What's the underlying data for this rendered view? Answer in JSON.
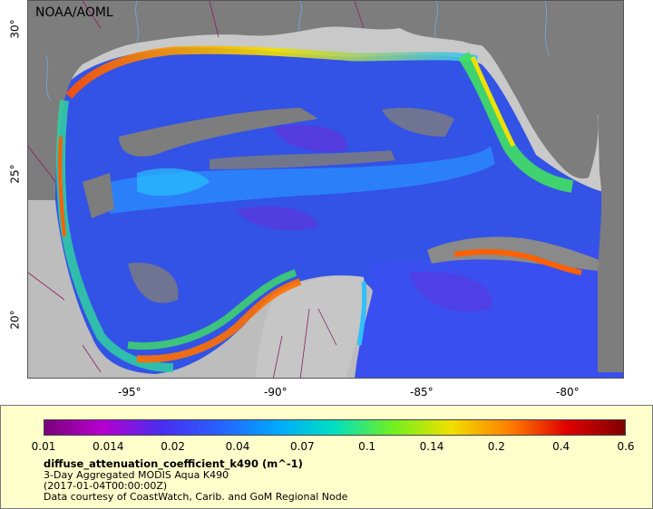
{
  "map": {
    "label": "NOAA/AOML",
    "lon_ticks": [
      "-95°",
      "-90°",
      "-85°",
      "-80°"
    ],
    "lat_ticks": [
      "30°",
      "25°",
      "20°"
    ],
    "colors": {
      "land": "#7d7d7d",
      "nodata": "#c9c9c9",
      "ocean": "#3a50e8",
      "border": "#8a2060",
      "river": "#6fa8d8"
    }
  },
  "legend": {
    "colorbar_ticks": [
      "0.01",
      "0.014",
      "0.02",
      "0.04",
      "0.07",
      "0.1",
      "0.14",
      "0.2",
      "0.4",
      "0.6"
    ],
    "colorbar_colors": [
      "#7a007a",
      "#b800d0",
      "#4a2cf0",
      "#2860ff",
      "#00a8ff",
      "#00e0c0",
      "#70f020",
      "#f0e000",
      "#ff8000",
      "#e00000",
      "#800000"
    ],
    "variable": "diffuse_attenuation_coefficient_k490 (m^-1)",
    "line1": "3-Day Aggregated MODIS Aqua K490",
    "line2": "(2017-01-04T00:00:00Z)",
    "line3": "Data courtesy of CoastWatch, Carib. and GoM Regional Node"
  }
}
